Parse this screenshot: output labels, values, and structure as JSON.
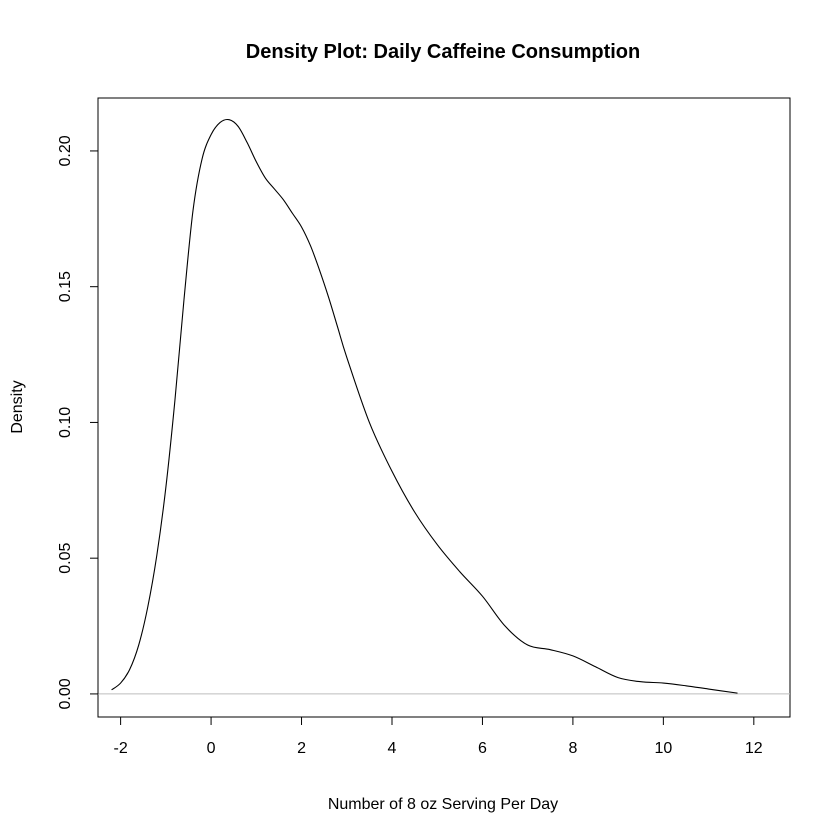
{
  "chart_data": {
    "type": "line",
    "title": "Density Plot: Daily Caffeine Consumption",
    "xlabel": "Number of 8 oz Serving Per Day",
    "ylabel": "Density",
    "xlim": [
      -2.5,
      12.8
    ],
    "ylim": [
      -0.0085,
      0.2195
    ],
    "x_ticks": [
      -2,
      0,
      2,
      4,
      6,
      8,
      10,
      12
    ],
    "x_tick_labels": [
      "-2",
      "0",
      "2",
      "4",
      "6",
      "8",
      "10",
      "12"
    ],
    "y_ticks": [
      0.0,
      0.05,
      0.1,
      0.15,
      0.2
    ],
    "y_tick_labels": [
      "0.00",
      "0.05",
      "0.10",
      "0.15",
      "0.20"
    ],
    "baseline": 0,
    "grid": false,
    "series": [
      {
        "x": [
          -2.2,
          -2.0,
          -1.8,
          -1.6,
          -1.4,
          -1.2,
          -1.0,
          -0.8,
          -0.6,
          -0.4,
          -0.2,
          0.0,
          0.2,
          0.4,
          0.6,
          0.8,
          1.0,
          1.2,
          1.4,
          1.6,
          1.8,
          2.0,
          2.2,
          2.4,
          2.6,
          2.8,
          3.0,
          3.5,
          4.0,
          4.5,
          5.0,
          5.5,
          6.0,
          6.5,
          7.0,
          7.5,
          8.0,
          8.5,
          9.0,
          9.5,
          10.0,
          10.5,
          11.0,
          11.64
        ],
        "y": [
          0.0015,
          0.004,
          0.009,
          0.018,
          0.032,
          0.051,
          0.076,
          0.108,
          0.145,
          0.178,
          0.197,
          0.206,
          0.2105,
          0.2115,
          0.209,
          0.203,
          0.196,
          0.19,
          0.186,
          0.182,
          0.177,
          0.172,
          0.165,
          0.156,
          0.146,
          0.135,
          0.124,
          0.1,
          0.082,
          0.067,
          0.055,
          0.045,
          0.036,
          0.025,
          0.018,
          0.0163,
          0.014,
          0.01,
          0.006,
          0.0045,
          0.004,
          0.003,
          0.0018,
          0.0003
        ]
      }
    ],
    "colors": {
      "line": "#000000",
      "baseline": "#bebebe",
      "frame": "#000000"
    }
  }
}
